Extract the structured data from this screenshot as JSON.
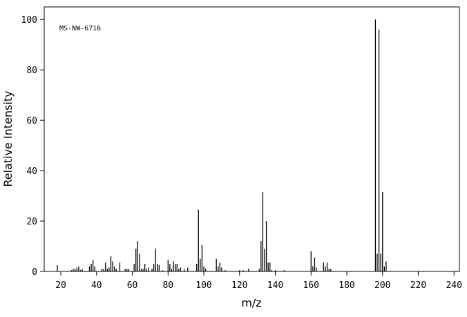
{
  "chart_data": {
    "type": "bar",
    "annotation": "MS-NW-6716",
    "xlabel": "m/z",
    "ylabel": "Relative Intensity",
    "x": [
      18,
      26,
      27,
      28,
      29,
      30,
      31,
      32,
      36,
      37,
      38,
      39,
      43,
      44,
      45,
      46,
      47,
      48,
      49,
      50,
      51,
      53,
      56,
      57,
      58,
      61,
      62,
      63,
      64,
      65,
      66,
      67,
      68,
      69,
      71,
      72,
      73,
      74,
      75,
      77,
      80,
      81,
      82,
      83,
      84,
      85,
      86,
      87,
      89,
      91,
      96,
      97,
      98,
      99,
      100,
      101,
      107,
      108,
      109,
      110,
      112,
      120,
      122,
      125,
      131,
      132,
      133,
      134,
      135,
      136,
      137,
      138,
      140,
      145,
      160,
      161,
      162,
      163,
      167,
      168,
      169,
      170,
      171,
      196,
      197,
      198,
      199,
      200,
      201,
      202
    ],
    "values": [
      2.5,
      0.5,
      1,
      1,
      1.5,
      2,
      0.5,
      1,
      2,
      3,
      4.5,
      2,
      1,
      1,
      3.5,
      1,
      1.5,
      6,
      4,
      2,
      1,
      3.5,
      1,
      1,
      1,
      3,
      9,
      12,
      7,
      1,
      1,
      3,
      1,
      1.5,
      1,
      3,
      9,
      3,
      2.5,
      0.5,
      4.5,
      3,
      1,
      4,
      3,
      3,
      1,
      1.5,
      1,
      1.5,
      3,
      24.5,
      5,
      10.5,
      2,
      1,
      5,
      2,
      3.5,
      1.5,
      0.5,
      0.5,
      0.5,
      1,
      1,
      12,
      31.5,
      9,
      20,
      3.5,
      3.5,
      0.5,
      0.5,
      0.5,
      8,
      2,
      5.5,
      1.5,
      3.5,
      2,
      3.5,
      1,
      1,
      100,
      7,
      96,
      7,
      31.5,
      2,
      4
    ],
    "color": "#000000",
    "xlim": [
      10.7,
      243
    ],
    "ylim": [
      0,
      105
    ],
    "xticks": [
      20,
      40,
      60,
      80,
      100,
      120,
      140,
      160,
      180,
      200,
      220,
      240
    ],
    "yticks": [
      0,
      20,
      40,
      60,
      80,
      100
    ]
  }
}
